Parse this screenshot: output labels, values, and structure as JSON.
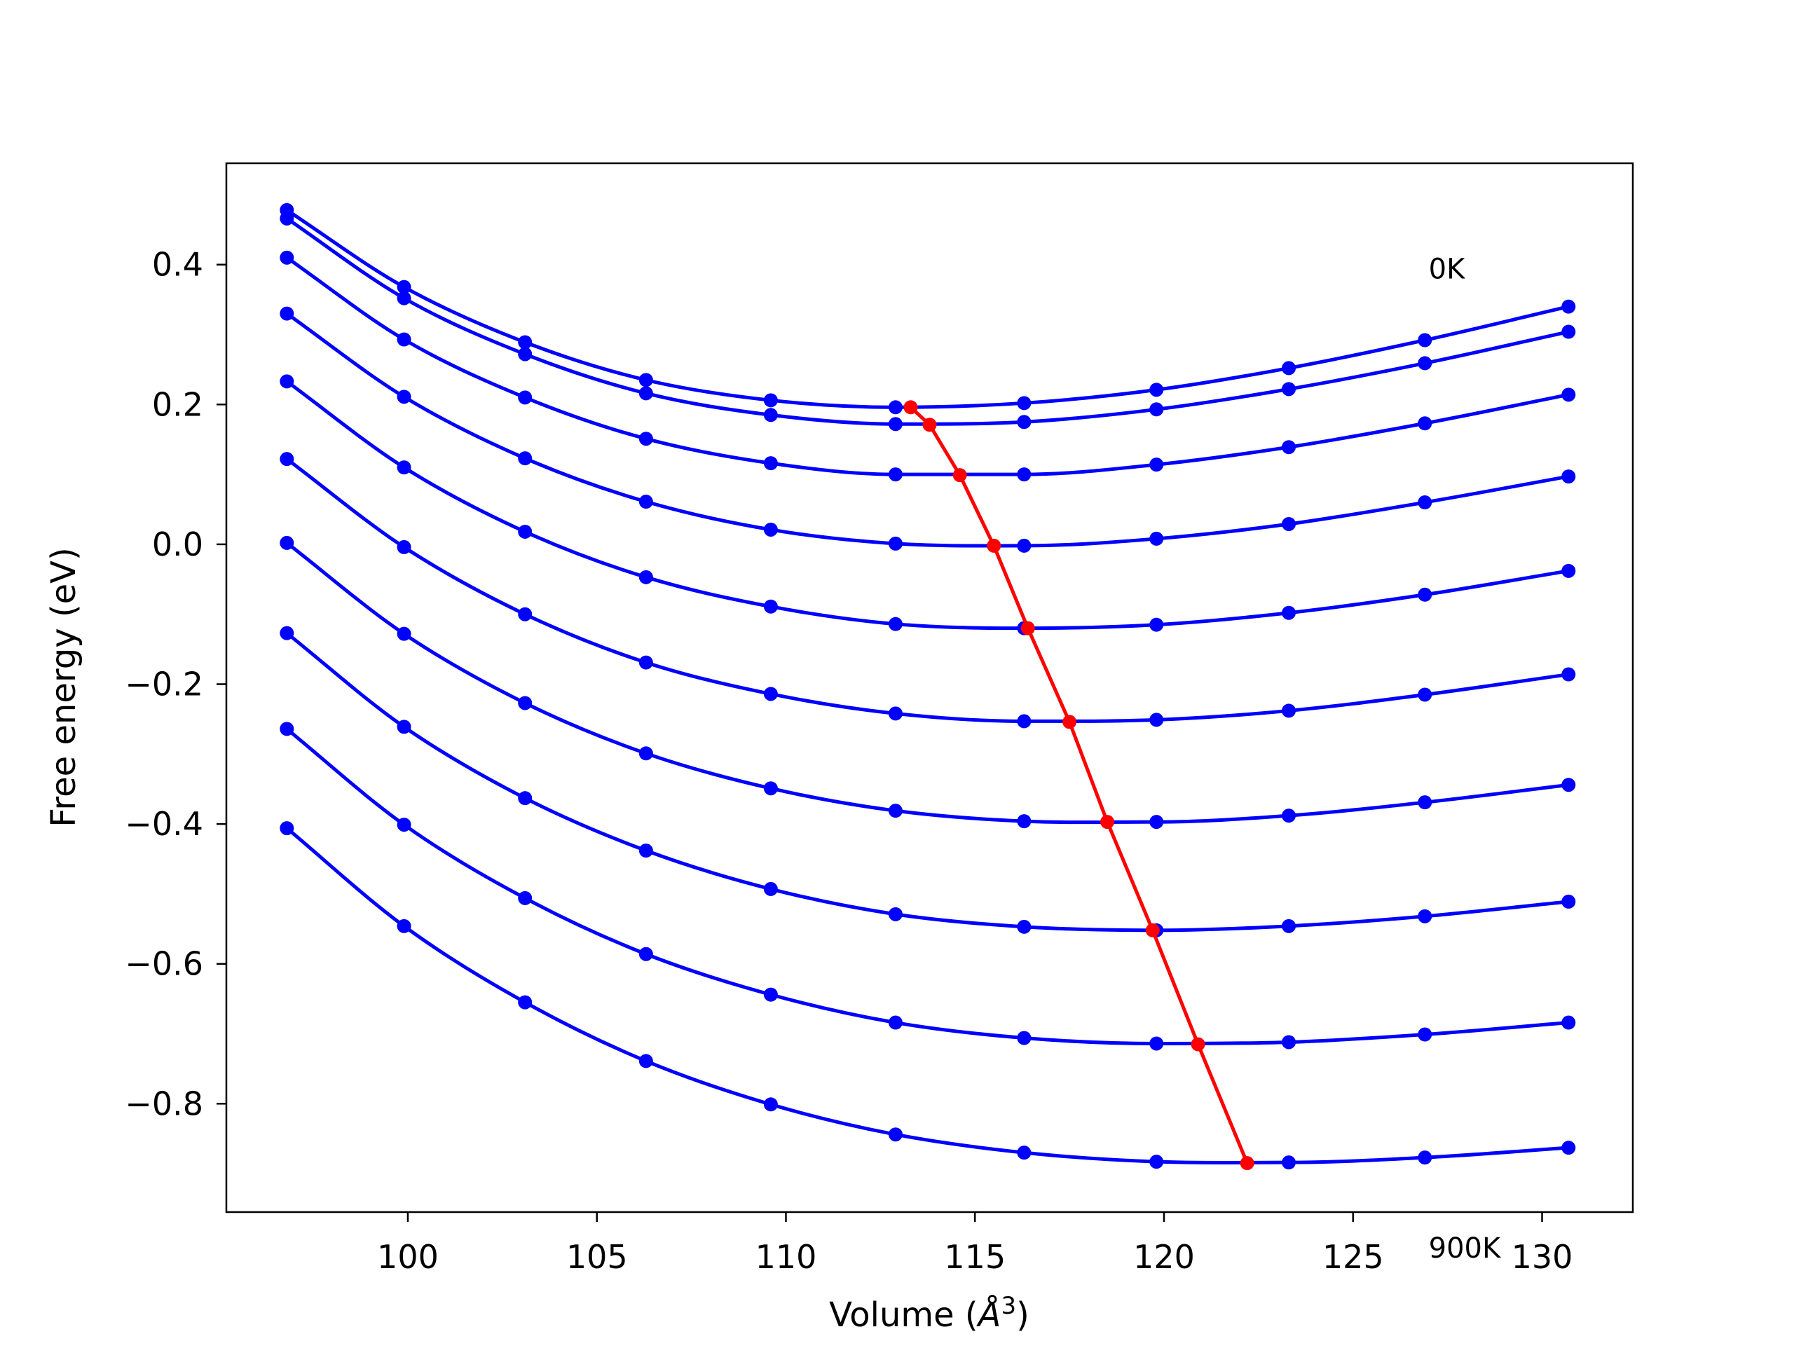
{
  "chart_data": {
    "type": "line",
    "title": "",
    "xlabel": "Volume (",
    "xlabel_symbol": "Å",
    "xlabel_exp": "3",
    "xlabel_close": ")",
    "ylabel": "Free energy (eV)",
    "xlim": [
      95.2,
      132.4
    ],
    "ylim": [
      -0.955,
      0.545
    ],
    "x_ticks": [
      100,
      105,
      110,
      115,
      120,
      125,
      130
    ],
    "y_ticks": [
      0.4,
      0.2,
      0.0,
      -0.2,
      -0.4,
      -0.6,
      -0.8
    ],
    "y_tick_labels": [
      "0.4",
      "0.2",
      "0.0",
      "−0.2",
      "−0.4",
      "−0.6",
      "−0.8"
    ],
    "annotations": [
      {
        "text": "0K",
        "x": 127.0,
        "y": 0.38
      },
      {
        "text": "900K",
        "x": 127.0,
        "y": -1.02
      }
    ],
    "curve_color": "#0000ff",
    "equilibrium_color": "#ff0000",
    "x": [
      96.8,
      99.9,
      103.1,
      106.3,
      109.6,
      112.9,
      116.3,
      119.8,
      123.3,
      126.9,
      130.7
    ],
    "series": [
      {
        "values": [
          0.478,
          0.368,
          0.289,
          0.235,
          0.206,
          0.196,
          0.202,
          0.221,
          0.252,
          0.292,
          0.34
        ]
      },
      {
        "values": [
          0.466,
          0.352,
          0.272,
          0.216,
          0.185,
          0.172,
          0.175,
          0.193,
          0.222,
          0.259,
          0.304
        ]
      },
      {
        "values": [
          0.41,
          0.293,
          0.21,
          0.151,
          0.116,
          0.1,
          0.1,
          0.114,
          0.139,
          0.173,
          0.214
        ]
      },
      {
        "values": [
          0.33,
          0.211,
          0.123,
          0.061,
          0.021,
          0.001,
          -0.002,
          0.008,
          0.029,
          0.06,
          0.097
        ]
      },
      {
        "values": [
          0.233,
          0.11,
          0.018,
          -0.047,
          -0.089,
          -0.114,
          -0.12,
          -0.115,
          -0.098,
          -0.072,
          -0.038
        ]
      },
      {
        "values": [
          0.122,
          -0.004,
          -0.1,
          -0.169,
          -0.214,
          -0.242,
          -0.253,
          -0.251,
          -0.238,
          -0.215,
          -0.186
        ]
      },
      {
        "values": [
          0.002,
          -0.128,
          -0.227,
          -0.299,
          -0.349,
          -0.381,
          -0.396,
          -0.397,
          -0.388,
          -0.369,
          -0.344
        ]
      },
      {
        "values": [
          -0.127,
          -0.261,
          -0.363,
          -0.438,
          -0.493,
          -0.529,
          -0.547,
          -0.552,
          -0.546,
          -0.532,
          -0.511
        ]
      },
      {
        "values": [
          -0.264,
          -0.401,
          -0.506,
          -0.586,
          -0.644,
          -0.684,
          -0.706,
          -0.714,
          -0.712,
          -0.701,
          -0.684
        ]
      },
      {
        "values": [
          -0.406,
          -0.546,
          -0.655,
          -0.739,
          -0.801,
          -0.844,
          -0.87,
          -0.883,
          -0.884,
          -0.877,
          -0.863
        ]
      }
    ],
    "equilibrium": {
      "x": [
        113.3,
        113.8,
        114.6,
        115.5,
        116.4,
        117.5,
        118.5,
        119.7,
        120.9,
        122.2
      ],
      "y": [
        0.196,
        0.171,
        0.099,
        -0.002,
        -0.12,
        -0.254,
        -0.397,
        -0.552,
        -0.715,
        -0.885
      ]
    }
  }
}
